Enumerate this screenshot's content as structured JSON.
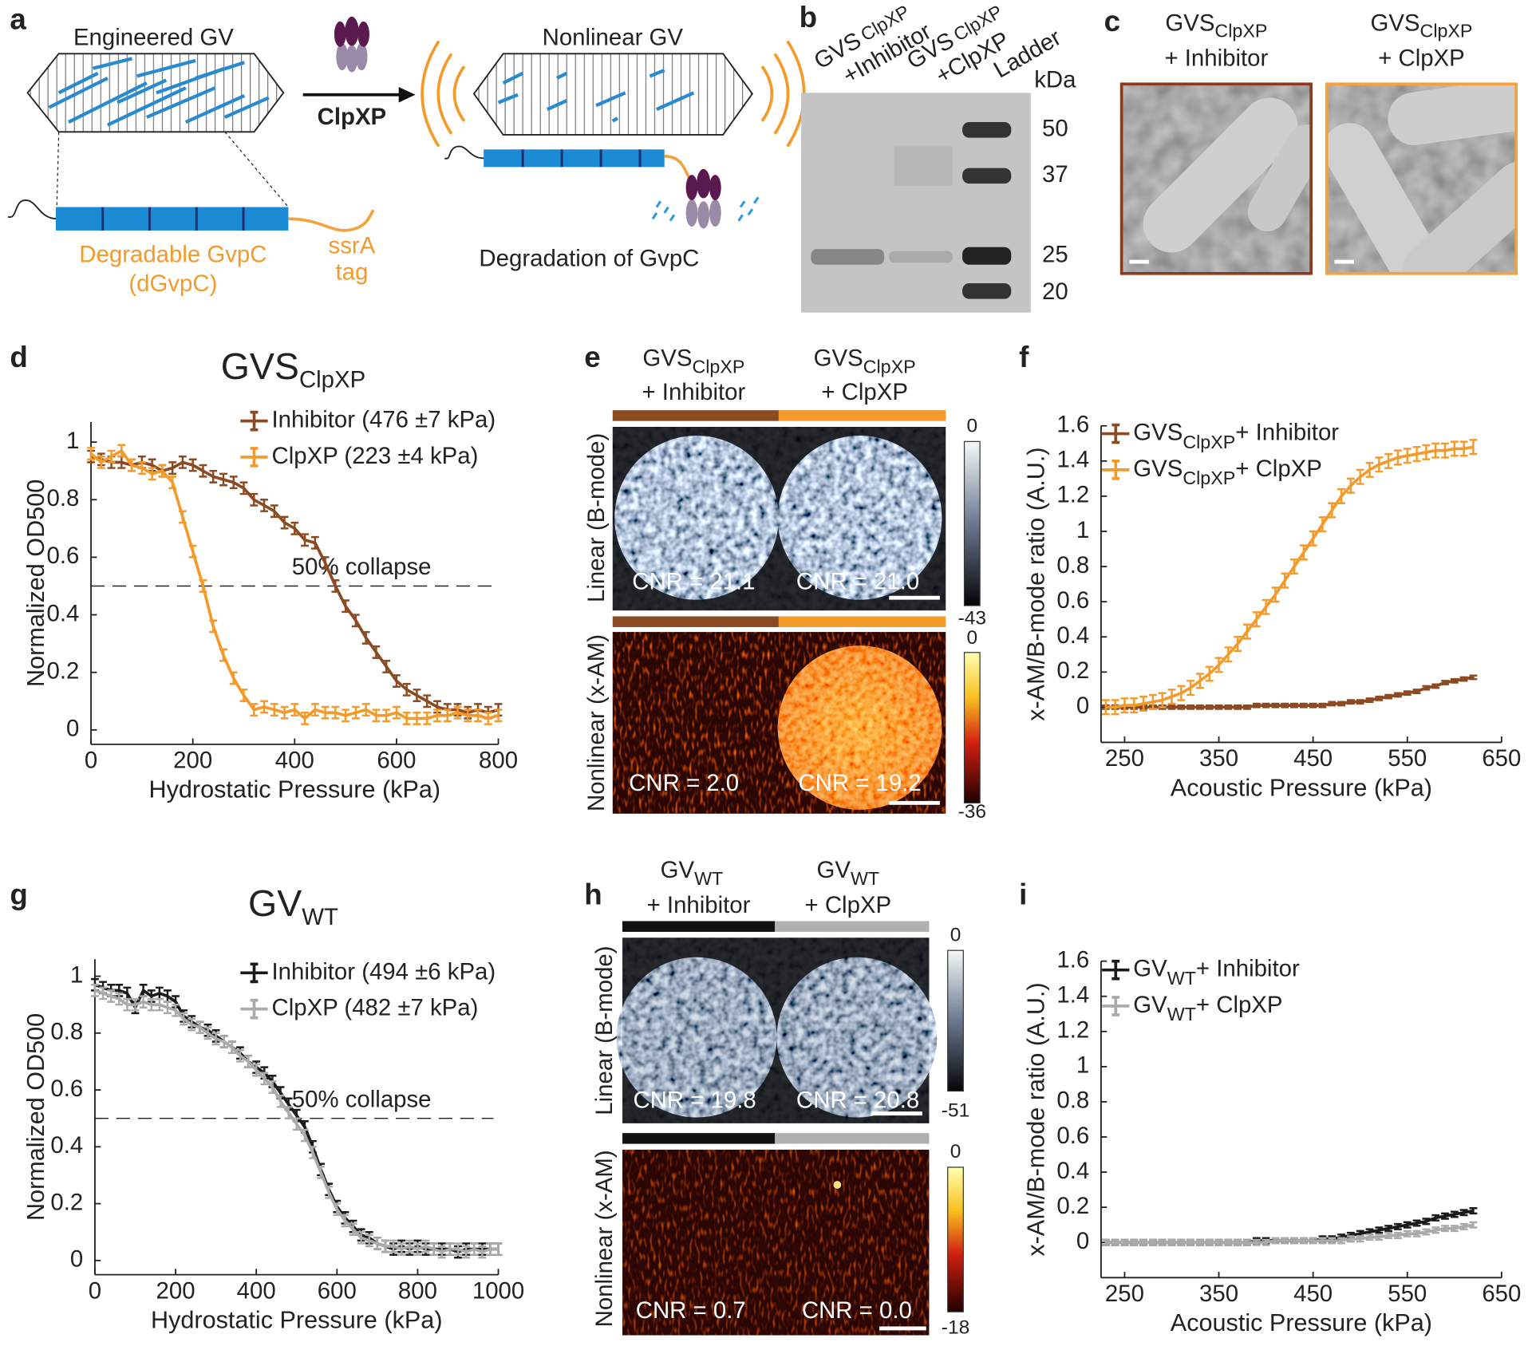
{
  "panel_labels": [
    "a",
    "b",
    "c",
    "d",
    "e",
    "f",
    "g",
    "h",
    "i"
  ],
  "schematic": {
    "engineered": "Engineered GV",
    "enzyme": "ClpXP",
    "nonlinear": "Nonlinear GV",
    "protein": "Degradable GvpC",
    "protein_abbr": "(dGvpC)",
    "tag_1": "ssrA",
    "tag_2": "tag",
    "degradation": "Degradation of GvpC"
  },
  "gel": {
    "lanes": [
      {
        "main": "GVS",
        "sub": "ClpXP",
        "condition": "+Inhibitor"
      },
      {
        "main": "GVS",
        "sub": "ClpXP",
        "condition": "+ClpXP"
      },
      {
        "main": "Ladder"
      }
    ],
    "unit": "kDa",
    "markers": [
      50,
      37,
      25,
      20
    ]
  },
  "tem": {
    "columns": [
      {
        "main": "GVS",
        "sub": "ClpXP",
        "condition": "+ Inhibitor"
      },
      {
        "main": "GVS",
        "sub": "ClpXP",
        "condition": "+ ClpXP"
      }
    ]
  },
  "panel_e": {
    "columns": [
      {
        "main": "GVS",
        "sub": "ClpXP",
        "condition": "+ Inhibitor"
      },
      {
        "main": "GVS",
        "sub": "ClpXP",
        "condition": "+ ClpXP"
      }
    ],
    "rows": [
      "Linear (B-mode)",
      "Nonlinear (x-AM)"
    ],
    "colorbars": [
      [
        "0",
        "-43"
      ],
      [
        "0",
        "-36"
      ]
    ],
    "cnr": [
      [
        "CNR = 21.1",
        "CNR = 21.0"
      ],
      [
        "CNR = 2.0",
        "CNR = 19.2"
      ]
    ]
  },
  "panel_h": {
    "columns": [
      {
        "main": "GV",
        "sub": "WT",
        "condition": "+ Inhibitor"
      },
      {
        "main": "GV",
        "sub": "WT",
        "condition": "+ ClpXP"
      }
    ],
    "rows": [
      "Linear (B-mode)",
      "Nonlinear (x-AM)"
    ],
    "colorbars": [
      [
        "0",
        "-51"
      ],
      [
        "0",
        "-18"
      ]
    ],
    "cnr": [
      [
        "CNR = 19.8",
        "CNR = 20.8"
      ],
      [
        "CNR = 0.7",
        "CNR = 0.0"
      ]
    ]
  },
  "chart_data": [
    {
      "type": "line",
      "title": "GVS",
      "title_subscript": "ClpXP",
      "xlabel": "Hydrostatic Pressure (kPa)",
      "ylabel": "Normalized OD500",
      "xlim": [
        0,
        800
      ],
      "xticks": [
        0,
        200,
        400,
        600,
        800
      ],
      "ylim": [
        -0.05,
        1.07
      ],
      "yticks": [
        0,
        0.2,
        0.4,
        0.6,
        0.8,
        1
      ],
      "threshold": 0.5,
      "annotation": "50% collapse",
      "x": [
        0,
        20,
        40,
        60,
        80,
        100,
        120,
        140,
        160,
        180,
        200,
        220,
        240,
        260,
        280,
        300,
        320,
        340,
        360,
        380,
        400,
        420,
        440,
        460,
        480,
        500,
        520,
        540,
        560,
        580,
        600,
        620,
        640,
        660,
        680,
        700,
        720,
        740,
        760,
        780,
        800
      ],
      "series": [
        {
          "name": "Inhibitor (476 ±7 kPa)",
          "color": "#8b4a22",
          "error": 0.02,
          "values": [
            0.95,
            0.94,
            0.93,
            0.93,
            0.92,
            0.93,
            0.92,
            0.9,
            0.91,
            0.93,
            0.92,
            0.9,
            0.88,
            0.87,
            0.86,
            0.84,
            0.8,
            0.78,
            0.76,
            0.72,
            0.7,
            0.66,
            0.65,
            0.58,
            0.5,
            0.43,
            0.38,
            0.32,
            0.27,
            0.22,
            0.17,
            0.14,
            0.12,
            0.1,
            0.08,
            0.07,
            0.07,
            0.06,
            0.07,
            0.06,
            0.07
          ]
        },
        {
          "name": "ClpXP (223 ±4 kPa)",
          "color": "#f39a2b",
          "error": 0.02,
          "values": [
            0.96,
            0.93,
            0.95,
            0.97,
            0.92,
            0.91,
            0.89,
            0.9,
            0.86,
            0.74,
            0.62,
            0.5,
            0.36,
            0.26,
            0.18,
            0.12,
            0.07,
            0.08,
            0.07,
            0.06,
            0.07,
            0.04,
            0.07,
            0.06,
            0.06,
            0.05,
            0.06,
            0.07,
            0.05,
            0.05,
            0.06,
            0.04,
            0.04,
            0.04,
            0.05,
            0.05,
            0.06,
            0.05,
            0.05,
            0.04,
            0.05
          ]
        }
      ]
    },
    {
      "type": "line",
      "xlabel": "Acoustic Pressure (kPa)",
      "ylabel": "x-AM/B-mode ratio (A.U.)",
      "xlim": [
        225,
        650
      ],
      "xticks": [
        250,
        350,
        450,
        550,
        650
      ],
      "ylim": [
        -0.2,
        1.6
      ],
      "yticks": [
        0,
        0.2,
        0.4,
        0.6,
        0.8,
        1,
        1.2,
        1.4,
        1.6
      ],
      "x": [
        230,
        240,
        250,
        260,
        270,
        280,
        290,
        300,
        310,
        320,
        330,
        340,
        350,
        360,
        370,
        380,
        390,
        400,
        410,
        420,
        430,
        440,
        450,
        460,
        470,
        480,
        490,
        500,
        510,
        520,
        530,
        540,
        550,
        560,
        570,
        580,
        590,
        600,
        610,
        620
      ],
      "series": [
        {
          "label_main": "GVS",
          "label_sub": "ClpXP",
          "name": "+ Inhibitor",
          "color": "#8b4a22",
          "error": 0.01,
          "values": [
            0,
            0,
            0,
            0,
            0,
            0,
            0,
            0,
            0,
            0,
            0,
            0,
            0,
            0,
            0,
            0,
            0.01,
            0.01,
            0.01,
            0.01,
            0.01,
            0.01,
            0.01,
            0.01,
            0.02,
            0.02,
            0.03,
            0.03,
            0.04,
            0.05,
            0.06,
            0.07,
            0.08,
            0.09,
            0.11,
            0.12,
            0.14,
            0.15,
            0.16,
            0.17
          ]
        },
        {
          "label_main": "GVS",
          "label_sub": "ClpXP",
          "name": "+ ClpXP",
          "color": "#f39a2b",
          "error": 0.04,
          "values": [
            0,
            0,
            0.01,
            0.01,
            0.02,
            0.03,
            0.04,
            0.06,
            0.08,
            0.11,
            0.15,
            0.19,
            0.24,
            0.3,
            0.36,
            0.43,
            0.5,
            0.57,
            0.64,
            0.72,
            0.8,
            0.88,
            0.96,
            1.04,
            1.12,
            1.2,
            1.26,
            1.31,
            1.35,
            1.38,
            1.4,
            1.42,
            1.43,
            1.44,
            1.45,
            1.46,
            1.46,
            1.47,
            1.47,
            1.48
          ]
        }
      ]
    },
    {
      "type": "line",
      "title": "GV",
      "title_subscript": "WT",
      "xlabel": "Hydrostatic Pressure (kPa)",
      "ylabel": "Normalized OD500",
      "xlim": [
        0,
        1000
      ],
      "xticks": [
        0,
        200,
        400,
        600,
        800,
        1000
      ],
      "ylim": [
        -0.05,
        1.06
      ],
      "yticks": [
        0,
        0.2,
        0.4,
        0.6,
        0.8,
        1
      ],
      "threshold": 0.5,
      "annotation": "50% collapse",
      "x": [
        0,
        20,
        40,
        60,
        80,
        100,
        120,
        140,
        160,
        180,
        200,
        220,
        240,
        260,
        280,
        300,
        320,
        340,
        360,
        380,
        400,
        420,
        440,
        460,
        480,
        500,
        520,
        540,
        560,
        580,
        600,
        620,
        640,
        660,
        680,
        700,
        720,
        740,
        760,
        780,
        800,
        820,
        840,
        860,
        880,
        900,
        920,
        940,
        960,
        980,
        1000
      ],
      "series": [
        {
          "name": "Inhibitor (494 ±6 kPa)",
          "color": "#1a1a1a",
          "error": 0.02,
          "values": [
            0.97,
            0.96,
            0.95,
            0.95,
            0.94,
            0.89,
            0.95,
            0.93,
            0.94,
            0.93,
            0.91,
            0.86,
            0.84,
            0.82,
            0.81,
            0.79,
            0.77,
            0.75,
            0.73,
            0.7,
            0.68,
            0.66,
            0.63,
            0.59,
            0.55,
            0.51,
            0.47,
            0.4,
            0.32,
            0.25,
            0.19,
            0.15,
            0.12,
            0.09,
            0.08,
            0.06,
            0.05,
            0.04,
            0.05,
            0.04,
            0.05,
            0.04,
            0.04,
            0.04,
            0.04,
            0.03,
            0.04,
            0.04,
            0.04,
            0.04,
            0.04
          ]
        },
        {
          "name": "ClpXP (482 ±7 kPa)",
          "color": "#aaaaaa",
          "error": 0.02,
          "values": [
            0.95,
            0.94,
            0.93,
            0.92,
            0.9,
            0.9,
            0.91,
            0.9,
            0.9,
            0.89,
            0.88,
            0.85,
            0.83,
            0.82,
            0.8,
            0.78,
            0.77,
            0.75,
            0.72,
            0.7,
            0.67,
            0.64,
            0.61,
            0.56,
            0.52,
            0.48,
            0.44,
            0.38,
            0.31,
            0.24,
            0.18,
            0.14,
            0.11,
            0.08,
            0.07,
            0.06,
            0.05,
            0.05,
            0.04,
            0.05,
            0.04,
            0.05,
            0.04,
            0.03,
            0.04,
            0.04,
            0.03,
            0.04,
            0.03,
            0.04,
            0.04
          ]
        }
      ]
    },
    {
      "type": "line",
      "xlabel": "Acoustic Pressure (kPa)",
      "ylabel": "x-AM/B-mode ratio (A.U.)",
      "xlim": [
        225,
        650
      ],
      "xticks": [
        250,
        350,
        450,
        550,
        650
      ],
      "ylim": [
        -0.2,
        1.6
      ],
      "yticks": [
        0,
        0.2,
        0.4,
        0.6,
        0.8,
        1,
        1.2,
        1.4,
        1.6
      ],
      "x": [
        230,
        240,
        250,
        260,
        270,
        280,
        290,
        300,
        310,
        320,
        330,
        340,
        350,
        360,
        370,
        380,
        390,
        400,
        410,
        420,
        430,
        440,
        450,
        460,
        470,
        480,
        490,
        500,
        510,
        520,
        530,
        540,
        550,
        560,
        570,
        580,
        590,
        600,
        610,
        620
      ],
      "series": [
        {
          "label_main": "GV",
          "label_sub": "WT",
          "name": "+ Inhibitor",
          "color": "#1a1a1a",
          "error": 0.015,
          "values": [
            0,
            0,
            0,
            0,
            0,
            0,
            0,
            0,
            0,
            0,
            0,
            0,
            0,
            0,
            0,
            0,
            0.01,
            0.01,
            0.01,
            0.01,
            0.01,
            0.01,
            0.01,
            0.02,
            0.02,
            0.03,
            0.04,
            0.05,
            0.06,
            0.07,
            0.08,
            0.09,
            0.1,
            0.11,
            0.12,
            0.14,
            0.15,
            0.16,
            0.17,
            0.18
          ]
        },
        {
          "label_main": "GV",
          "label_sub": "WT",
          "name": "+ ClpXP",
          "color": "#aaaaaa",
          "error": 0.015,
          "values": [
            0,
            0,
            0,
            0,
            0,
            0,
            0,
            0,
            0,
            0,
            0,
            0,
            0,
            0,
            0,
            0,
            0,
            0,
            0.01,
            0.01,
            0.01,
            0.01,
            0.01,
            0.01,
            0.01,
            0.01,
            0.02,
            0.02,
            0.03,
            0.03,
            0.04,
            0.04,
            0.05,
            0.05,
            0.06,
            0.07,
            0.08,
            0.08,
            0.09,
            0.1
          ]
        }
      ]
    }
  ]
}
